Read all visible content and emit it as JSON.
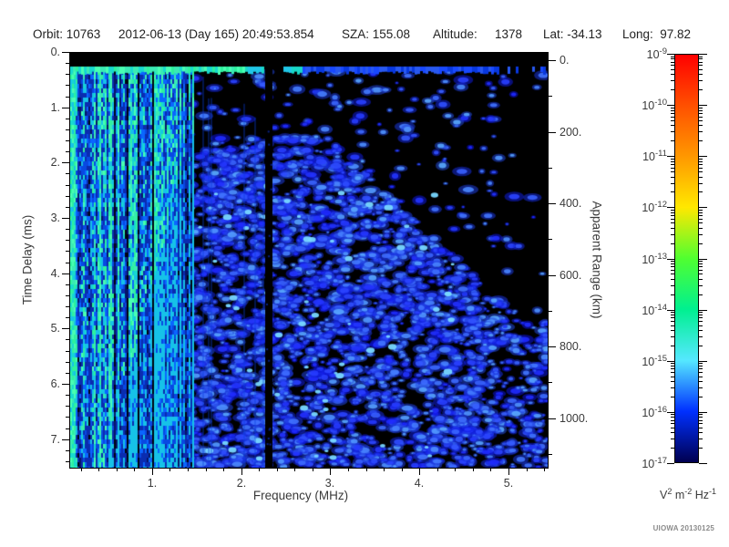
{
  "header": {
    "items": [
      "Orbit: 10763",
      "2012-06-13 (Day 165) 20:49:53.854",
      "SZA: 155.08",
      "Altitude:",
      "1378",
      "Lat: -34.13",
      "Long:  97.82"
    ]
  },
  "axes": {
    "x": {
      "label": "Frequency (MHz)",
      "tick_values": [
        1,
        2,
        3,
        4,
        5
      ],
      "tick_labels": [
        "1.",
        "2.",
        "3.",
        "4.",
        "5."
      ],
      "minor_step": 0.2,
      "range": [
        0.07,
        5.43
      ]
    },
    "y_left": {
      "label": "Time Delay (ms)",
      "tick_values": [
        0,
        1,
        2,
        3,
        4,
        5,
        6,
        7
      ],
      "tick_labels": [
        "0.",
        "1.",
        "2.",
        "3.",
        "4.",
        "5.",
        "6.",
        "7."
      ],
      "minor_step": 0.2,
      "range": [
        0,
        7.5
      ]
    },
    "y_right": {
      "label": "Apparent Range (km)",
      "tick_values": [
        0,
        200,
        400,
        600,
        800,
        1000
      ],
      "tick_labels": [
        "0.",
        "200.",
        "400.",
        "600.",
        "800.",
        "1000."
      ],
      "minor_step": 100,
      "range": [
        -23,
        1136
      ]
    }
  },
  "colorbar": {
    "scale": "log",
    "exponents": [
      -9,
      -10,
      -11,
      -12,
      -13,
      -14,
      -15,
      -16,
      -17
    ],
    "colors_top_to_bottom": [
      "#ff0000",
      "#ff5000",
      "#ff9800",
      "#ffe800",
      "#50ff30",
      "#00f090",
      "#55e8ff",
      "#0030ff",
      "#000050"
    ],
    "unit_parts": [
      {
        "base": "V",
        "exp": "2"
      },
      {
        "base": "m",
        "exp": "-2"
      },
      {
        "base": "Hz",
        "exp": "-1"
      }
    ]
  },
  "watermark": "UIOWA 20130125",
  "chart_data": {
    "type": "heatmap",
    "title": "",
    "xlabel": "Frequency (MHz)",
    "x_ticks": [
      1,
      2,
      3,
      4,
      5
    ],
    "x_range_mhz": [
      0.1,
      5.4
    ],
    "ylabel": "Time Delay (ms)",
    "y_ticks": [
      0,
      1,
      2,
      3,
      4,
      5,
      6,
      7
    ],
    "y_range_ms": [
      0,
      7.5
    ],
    "y2label": "Apparent Range (km)",
    "y2_ticks": [
      0,
      200,
      400,
      600,
      800,
      1000
    ],
    "colorbar_unit": "V^2 m^-2 Hz^-1",
    "colorbar_range": [
      "1e-9",
      "1e-17"
    ],
    "grid": false,
    "legend_position": "right",
    "features": [
      {
        "name": "no-signal-top-band",
        "f_mhz": [
          0.1,
          5.4
        ],
        "t_ms": [
          0.0,
          0.25
        ],
        "value": "black, ~1e-17"
      },
      {
        "name": "first-return-horizontal-band",
        "f_mhz": [
          0.1,
          5.4
        ],
        "t_ms": [
          0.25,
          0.35
        ],
        "value": "bright green ~1e-13 below ~2 MHz, fading to blue ~1e-15 at higher frequency, interrupted near 2.3 MHz"
      },
      {
        "name": "plasma-oscillation-vertical-stripes",
        "f_mhz": [
          0.1,
          1.4
        ],
        "t_ms": [
          0.3,
          7.5
        ],
        "value": "dense vertical stripes 1e-13..1e-16, brightest green/cyan at lowest frequencies; green extent shrinks with delay above ~0.5 MHz"
      },
      {
        "name": "receiver-gap-column",
        "f_mhz": [
          2.3,
          2.4
        ],
        "t_ms": [
          0.3,
          7.5
        ],
        "value": "black column ~1e-17"
      },
      {
        "name": "diffuse-echo-speckle",
        "f_mhz": [
          1.4,
          5.4
        ],
        "t_ms": [
          0.5,
          7.5
        ],
        "value": "blue speckle ~1e-15..1e-16, dense at mid delays, sparse/black for t<1.5 ms above 2.7 MHz and near right edge"
      },
      {
        "name": "bright-cyan-spots",
        "f_mhz": [
          1.5,
          3.5
        ],
        "t_ms": [
          1.5,
          7.5
        ],
        "value": "scattered brighter cyan blobs ~1e-14.5"
      }
    ]
  }
}
